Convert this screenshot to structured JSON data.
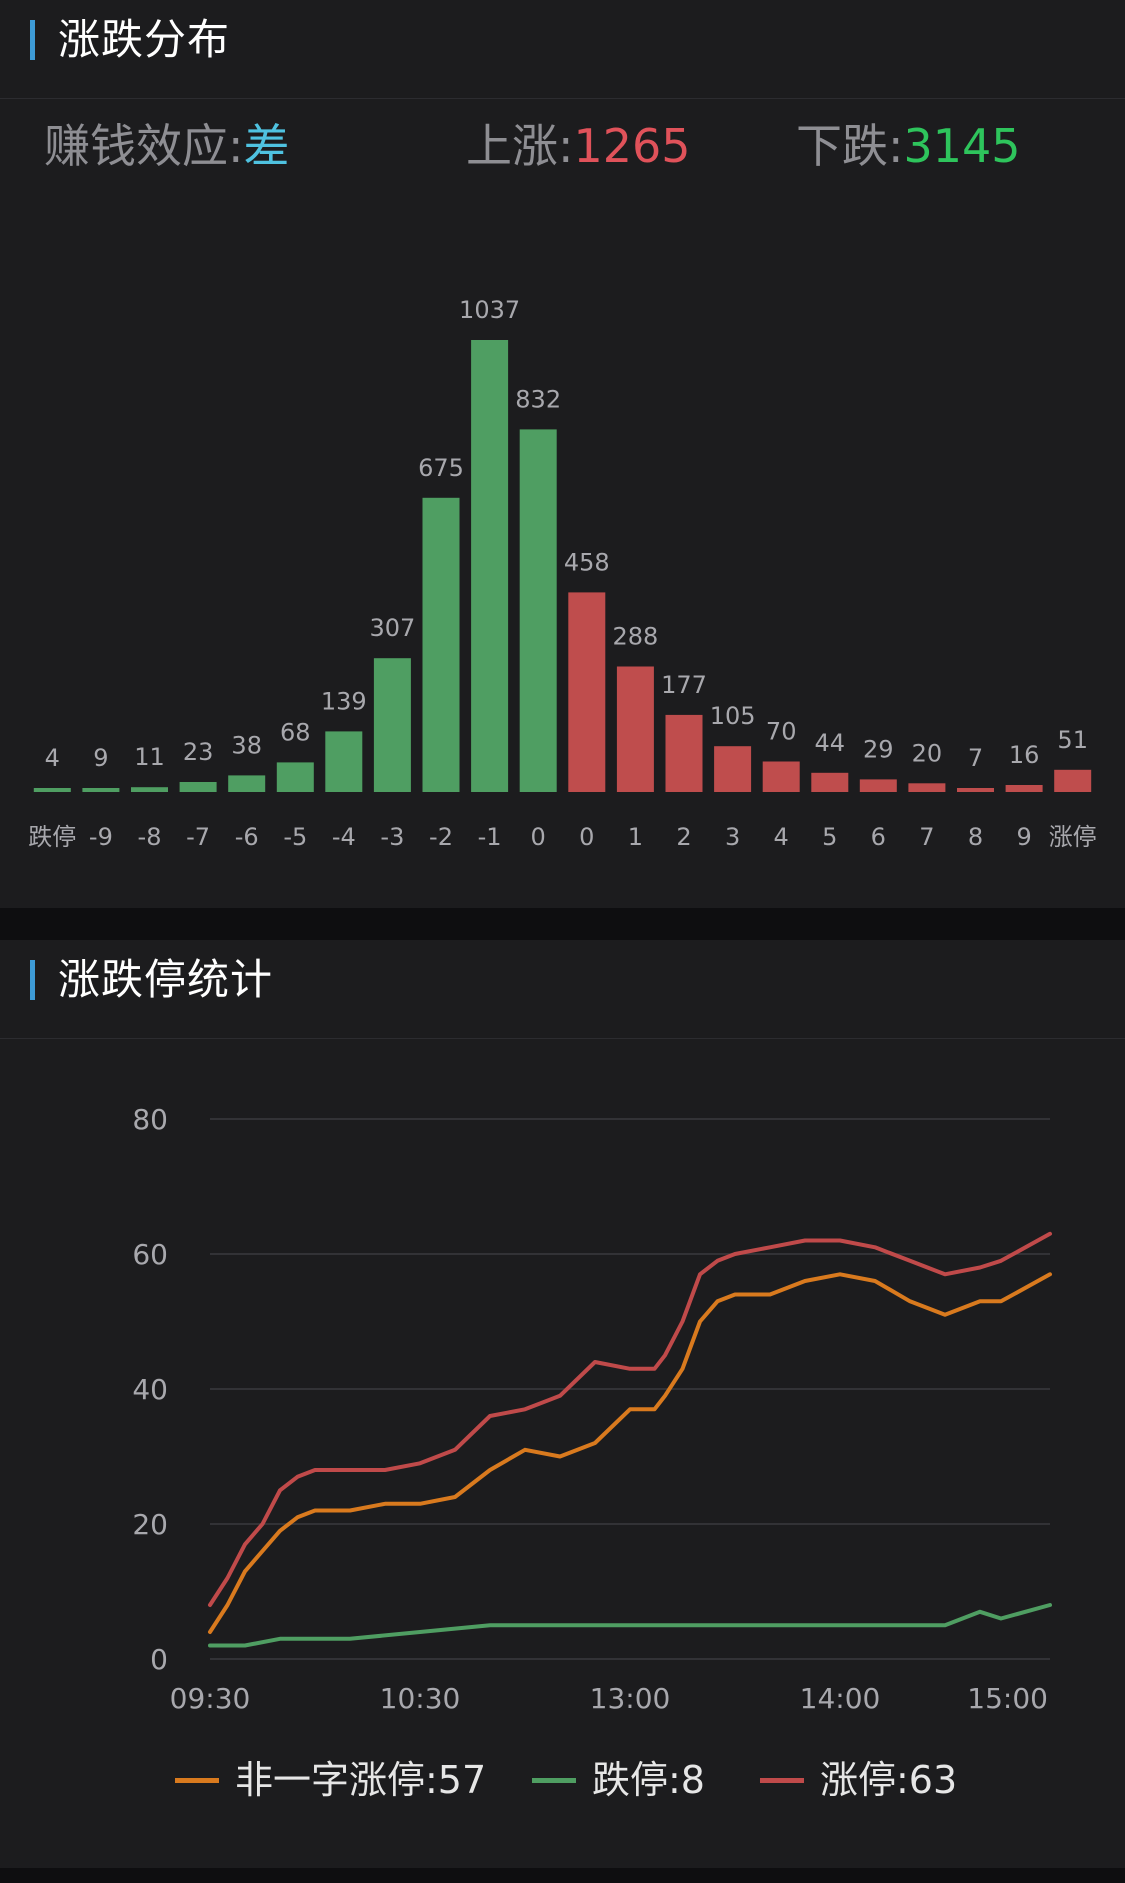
{
  "distribution": {
    "title": "涨跌分布",
    "effect_label": "赚钱效应:",
    "effect_value": "差",
    "up_label": "上涨:",
    "up_value": "1265",
    "down_label": "下跌:",
    "down_value": "3145"
  },
  "limit_stats": {
    "title": "涨跌停统计"
  },
  "colors": {
    "green_bar": "#4f9e62",
    "red_bar": "#bf4d4d",
    "orange_line": "#d97a1e",
    "green_line": "#4f9e62",
    "red_line": "#c04a4a"
  },
  "chart_data": [
    {
      "type": "bar",
      "categories": [
        "跌停",
        "-9",
        "-8",
        "-7",
        "-6",
        "-5",
        "-4",
        "-3",
        "-2",
        "-1",
        "0",
        "0",
        "1",
        "2",
        "3",
        "4",
        "5",
        "6",
        "7",
        "8",
        "9",
        "涨停"
      ],
      "values": [
        4,
        9,
        11,
        23,
        38,
        68,
        139,
        307,
        675,
        1037,
        832,
        458,
        288,
        177,
        105,
        70,
        44,
        29,
        20,
        7,
        16,
        51
      ],
      "bar_colors": [
        "green",
        "green",
        "green",
        "green",
        "green",
        "green",
        "green",
        "green",
        "green",
        "green",
        "green",
        "red",
        "red",
        "red",
        "red",
        "red",
        "red",
        "red",
        "red",
        "red",
        "red",
        "red"
      ],
      "ylim": [
        0,
        1037
      ],
      "grid": false
    },
    {
      "type": "line",
      "x_ticks": [
        "09:30",
        "10:30",
        "13:00",
        "14:00",
        "15:00"
      ],
      "y_ticks": [
        "0",
        "20",
        "40",
        "60",
        "80"
      ],
      "ylim": [
        0,
        80
      ],
      "grid": true,
      "legend_position": "bottom",
      "series": [
        {
          "name": "非一字涨停:57",
          "color": "orange",
          "points": [
            [
              0,
              4
            ],
            [
              5,
              8
            ],
            [
              10,
              13
            ],
            [
              15,
              16
            ],
            [
              20,
              19
            ],
            [
              25,
              21
            ],
            [
              30,
              22
            ],
            [
              40,
              22
            ],
            [
              50,
              23
            ],
            [
              60,
              23
            ],
            [
              70,
              24
            ],
            [
              80,
              28
            ],
            [
              90,
              31
            ],
            [
              100,
              30
            ],
            [
              110,
              32
            ],
            [
              120,
              37
            ],
            [
              127,
              37
            ],
            [
              130,
              39
            ],
            [
              135,
              43
            ],
            [
              140,
              50
            ],
            [
              145,
              53
            ],
            [
              150,
              54
            ],
            [
              160,
              54
            ],
            [
              170,
              56
            ],
            [
              180,
              57
            ],
            [
              190,
              56
            ],
            [
              200,
              53
            ],
            [
              210,
              51
            ],
            [
              220,
              53
            ],
            [
              226,
              53
            ],
            [
              240,
              57
            ]
          ]
        },
        {
          "name": "跌停:8",
          "color": "green",
          "points": [
            [
              0,
              2
            ],
            [
              10,
              2
            ],
            [
              20,
              3
            ],
            [
              40,
              3
            ],
            [
              60,
              4
            ],
            [
              80,
              5
            ],
            [
              100,
              5
            ],
            [
              120,
              5
            ],
            [
              140,
              5
            ],
            [
              160,
              5
            ],
            [
              180,
              5
            ],
            [
              200,
              5
            ],
            [
              210,
              5
            ],
            [
              220,
              7
            ],
            [
              226,
              6
            ],
            [
              240,
              8
            ]
          ]
        },
        {
          "name": "涨停:63",
          "color": "red",
          "points": [
            [
              0,
              8
            ],
            [
              5,
              12
            ],
            [
              10,
              17
            ],
            [
              15,
              20
            ],
            [
              20,
              25
            ],
            [
              25,
              27
            ],
            [
              30,
              28
            ],
            [
              40,
              28
            ],
            [
              50,
              28
            ],
            [
              60,
              29
            ],
            [
              70,
              31
            ],
            [
              80,
              36
            ],
            [
              90,
              37
            ],
            [
              100,
              39
            ],
            [
              110,
              44
            ],
            [
              120,
              43
            ],
            [
              127,
              43
            ],
            [
              130,
              45
            ],
            [
              135,
              50
            ],
            [
              140,
              57
            ],
            [
              145,
              59
            ],
            [
              150,
              60
            ],
            [
              160,
              61
            ],
            [
              170,
              62
            ],
            [
              180,
              62
            ],
            [
              190,
              61
            ],
            [
              200,
              59
            ],
            [
              210,
              57
            ],
            [
              220,
              58
            ],
            [
              226,
              59
            ],
            [
              240,
              63
            ]
          ]
        }
      ]
    }
  ]
}
